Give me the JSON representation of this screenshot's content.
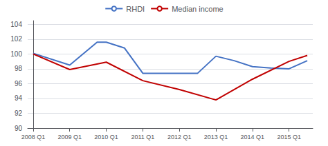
{
  "chart_data": {
    "type": "line",
    "series": [
      {
        "name": "RHDI",
        "color": "#4472C4",
        "x": [
          0,
          1,
          1.75,
          2,
          2.5,
          3,
          3.5,
          4,
          4.5,
          5,
          5.5,
          6,
          6.5,
          7,
          7.5
        ],
        "values": [
          100.1,
          98.5,
          101.6,
          101.6,
          100.8,
          97.4,
          97.4,
          97.4,
          97.4,
          99.7,
          99.1,
          98.3,
          98.1,
          98.0,
          99.1
        ]
      },
      {
        "name": "Median income",
        "color": "#C00000",
        "x": [
          0,
          1,
          2,
          3,
          4,
          5,
          6,
          7,
          7.5
        ],
        "values": [
          100.0,
          97.9,
          98.9,
          96.4,
          95.2,
          93.8,
          96.6,
          99.0,
          99.8
        ]
      }
    ],
    "xlim": [
      -0.15,
      7.65
    ],
    "xticks": [
      {
        "value": 0,
        "label": "2008 Q1"
      },
      {
        "value": 1,
        "label": "2009 Q1"
      },
      {
        "value": 2,
        "label": "2010 Q1"
      },
      {
        "value": 3,
        "label": "2011 Q1"
      },
      {
        "value": 4,
        "label": "2012 Q1"
      },
      {
        "value": 5,
        "label": "2013 Q1"
      },
      {
        "value": 6,
        "label": "2014 Q1"
      },
      {
        "value": 7,
        "label": "2015 Q1"
      }
    ],
    "ylim": [
      90,
      104.5
    ],
    "yticks": [
      90,
      92,
      94,
      96,
      98,
      100,
      102,
      104
    ],
    "grid": true,
    "legend": "top"
  }
}
